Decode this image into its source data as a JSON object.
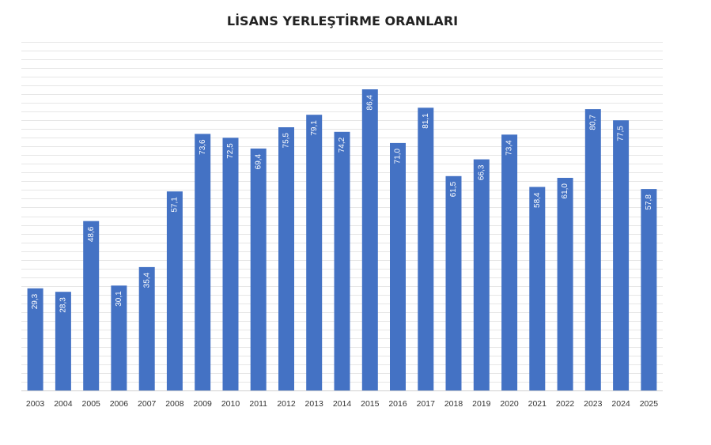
{
  "chart_data": {
    "type": "bar",
    "title": "LİSANS YERLEŞTİRME ORANLARI",
    "xlabel": "",
    "ylabel": "",
    "ylim": [
      0,
      100
    ],
    "grid": true,
    "legend": "none",
    "bar_color": "#4472C4",
    "gridline_color": "#e6e6e6",
    "categories": [
      "2003",
      "2004",
      "2005",
      "2006",
      "2007",
      "2008",
      "2009",
      "2010",
      "2011",
      "2012",
      "2013",
      "2014",
      "2015",
      "2016",
      "2017",
      "2018",
      "2019",
      "2020",
      "2021",
      "2022",
      "2023",
      "2024",
      "2025"
    ],
    "values": [
      29.3,
      28.3,
      48.6,
      30.1,
      35.4,
      57.1,
      73.6,
      72.5,
      69.4,
      75.5,
      79.1,
      74.2,
      86.4,
      71.0,
      81.1,
      61.5,
      66.3,
      73.4,
      58.4,
      61.0,
      80.7,
      77.5,
      57.8
    ],
    "value_labels": [
      "29,3",
      "28,3",
      "48,6",
      "30,1",
      "35,4",
      "57,1",
      "73,6",
      "72,5",
      "69,4",
      "75,5",
      "79,1",
      "74,2",
      "86,4",
      "71,0",
      "81,1",
      "61,5",
      "66,3",
      "73,4",
      "58,4",
      "61,0",
      "80,7",
      "77,5",
      "57,8"
    ]
  }
}
